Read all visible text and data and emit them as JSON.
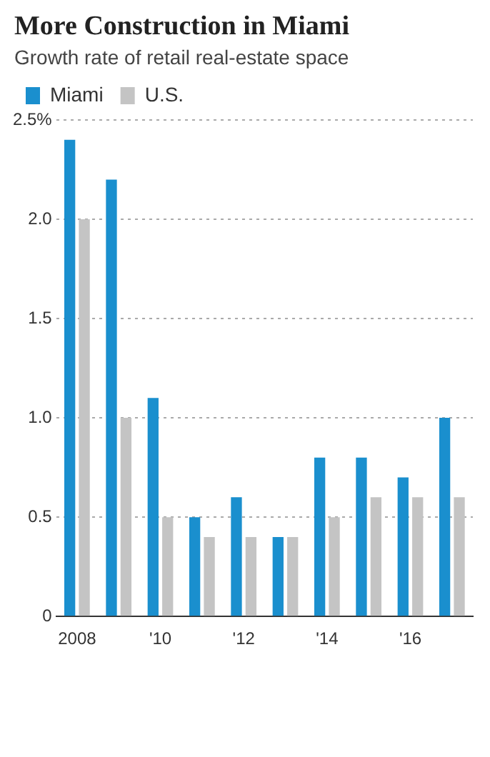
{
  "chart_data": {
    "type": "bar",
    "title": "More Construction in Miami",
    "subtitle": "Growth rate of retail real-estate space",
    "categories": [
      "2008",
      null,
      "'10",
      null,
      "'12",
      null,
      "'14",
      null,
      "'16",
      null
    ],
    "series": [
      {
        "name": "Miami",
        "color": "#1a8fce",
        "values": [
          2.4,
          2.2,
          1.1,
          0.5,
          0.6,
          0.4,
          0.8,
          0.8,
          0.7,
          1.0
        ]
      },
      {
        "name": "U.S.",
        "color": "#c4c4c4",
        "values": [
          2.0,
          1.0,
          0.5,
          0.4,
          0.4,
          0.4,
          0.5,
          0.6,
          0.6,
          0.6
        ]
      }
    ],
    "ylim": [
      0,
      2.5
    ],
    "yticks": [
      0,
      {
        "value": 0.5,
        "label": "0.5"
      },
      {
        "value": 1,
        "label": "1.0"
      },
      {
        "value": 1.5,
        "label": "1.5"
      },
      {
        "value": 2,
        "label": "2.0"
      },
      {
        "value": 2.5,
        "label": "2.5%"
      }
    ],
    "grid": "y",
    "legend": "top left"
  }
}
